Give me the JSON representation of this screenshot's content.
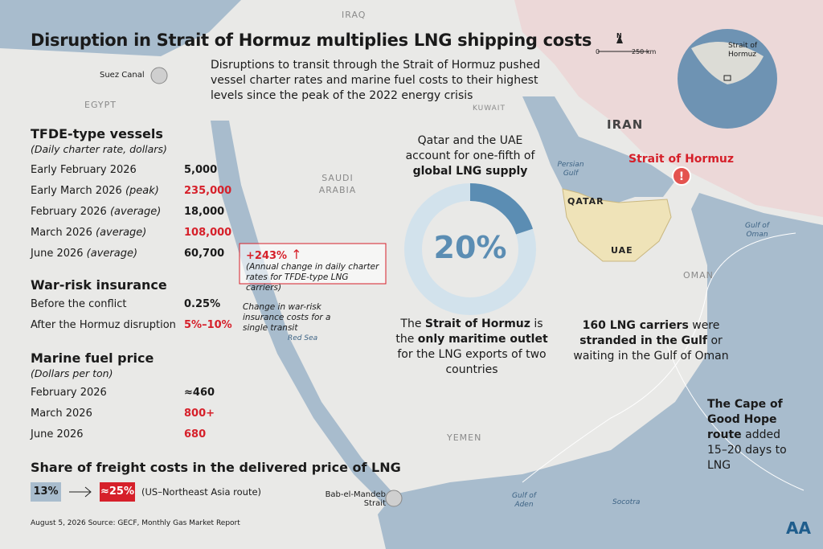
{
  "title": "Disruption in Strait of Hormuz multiplies LNG shipping costs",
  "subtitle": "Disruptions to transit through the Strait of Hormuz pushed vessel charter rates and marine fuel costs to their highest levels since the peak of the 2022 energy crisis",
  "tfde": {
    "heading": "TFDE-type vessels",
    "unit": "(Daily charter rate, dollars)",
    "rows": [
      {
        "label": "Early February 2026",
        "note": "",
        "value": "5,000"
      },
      {
        "label": "Early March 2026",
        "note": "(peak)",
        "value": "235,000"
      },
      {
        "label": "February 2026",
        "note": "(average)",
        "value": "18,000"
      },
      {
        "label": "March 2026",
        "note": "(average)",
        "value": "108,000"
      },
      {
        "label": "June 2026",
        "note": "(average)",
        "value": "60,700"
      }
    ]
  },
  "change": {
    "value": "+243%",
    "note": "(Annual change in daily charter rates for TFDE-type LNG carriers)"
  },
  "insurance": {
    "heading": "War-risk insurance",
    "rows": [
      {
        "label": "Before the conflict",
        "value": "0.25%"
      },
      {
        "label": "After the Hormuz disruption",
        "value": "5%–10%"
      }
    ],
    "note": "Change in war-risk insurance costs for a single transit"
  },
  "fuel": {
    "heading": "Marine fuel price",
    "unit": "(Dollars per ton)",
    "rows": [
      {
        "label": "February 2026",
        "value": "≈460"
      },
      {
        "label": "March 2026",
        "value": "800+"
      },
      {
        "label": "June 2026",
        "value": "680"
      }
    ]
  },
  "freight": {
    "heading": "Share of freight costs in the delivered price of LNG",
    "before": "13%",
    "after": "≈25%",
    "route": "(US–Northeast Asia route)"
  },
  "footer": "August 5, 2026  Source: GECF, Monthly Gas Market Report",
  "supply": {
    "text": "Qatar and the UAE account for one-fifth of",
    "bold": "global LNG supply",
    "share": {
      "value": 20,
      "label": "20%"
    }
  },
  "outlet": [
    "The ",
    "Strait of Hormuz",
    " is the ",
    "only maritime outlet",
    " for the LNG exports of two countries"
  ],
  "carriers": [
    "160 LNG carriers",
    " were ",
    "stranded in the Gulf",
    " or waiting in the Gulf of Oman"
  ],
  "cape": [
    "The Cape of Good Hope route",
    " added 15–20 days to LNG"
  ],
  "map": {
    "labels": [
      "IRAQ",
      "EGYPT",
      "SAUDI ARABIA",
      "KUWAIT",
      "IRAN",
      "QATAR",
      "UAE",
      "OMAN",
      "YEMEN"
    ],
    "seas": [
      "Red Sea",
      "Persian Gulf",
      "Gulf of Oman",
      "Gulf of Aden",
      "Socotra"
    ],
    "places": [
      "Suez Canal",
      "Bab-el-Mandeb Strait"
    ],
    "hormuz": "Strait of Hormuz",
    "scale": [
      "0",
      "250 km"
    ],
    "north": "N",
    "globe_label": "Strait of Hormuz"
  },
  "logo": "AA"
}
